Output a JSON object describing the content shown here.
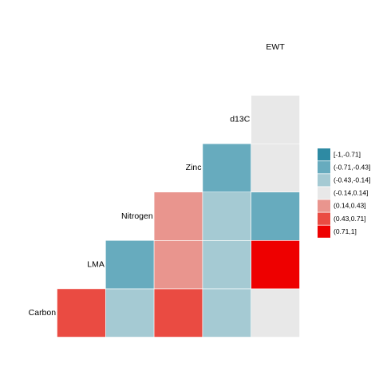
{
  "chart_data": {
    "type": "heatmap",
    "variables": [
      "Carbon",
      "LMA",
      "Nitrogen",
      "Zinc",
      "d13C",
      "EWT"
    ],
    "bins": [
      "[-1,-0.71]",
      "(-0.71,-0.43]",
      "(-0.43,-0.14]",
      "(-0.14,0.14]",
      "(0.14,0.43]",
      "(0.43,0.71]",
      "(0.71,1]"
    ],
    "bin_colors": [
      "#2e8aa3",
      "#67abbe",
      "#a5cad3",
      "#e8e8e8",
      "#e9958e",
      "#ea4b42",
      "#ee0000"
    ],
    "cells": [
      {
        "row": "Carbon",
        "col": "LMA",
        "bin": "(0.43,0.71]"
      },
      {
        "row": "Carbon",
        "col": "Nitrogen",
        "bin": "(-0.43,-0.14]"
      },
      {
        "row": "Carbon",
        "col": "Zinc",
        "bin": "(0.43,0.71]"
      },
      {
        "row": "Carbon",
        "col": "d13C",
        "bin": "(-0.43,-0.14]"
      },
      {
        "row": "Carbon",
        "col": "EWT",
        "bin": "(-0.14,0.14]"
      },
      {
        "row": "LMA",
        "col": "Nitrogen",
        "bin": "(-0.71,-0.43]"
      },
      {
        "row": "LMA",
        "col": "Zinc",
        "bin": "(0.14,0.43]"
      },
      {
        "row": "LMA",
        "col": "d13C",
        "bin": "(-0.43,-0.14]"
      },
      {
        "row": "LMA",
        "col": "EWT",
        "bin": "(0.71,1]"
      },
      {
        "row": "Nitrogen",
        "col": "Zinc",
        "bin": "(0.14,0.43]"
      },
      {
        "row": "Nitrogen",
        "col": "d13C",
        "bin": "(-0.43,-0.14]"
      },
      {
        "row": "Nitrogen",
        "col": "EWT",
        "bin": "(-0.71,-0.43]"
      },
      {
        "row": "Zinc",
        "col": "d13C",
        "bin": "(-0.71,-0.43]"
      },
      {
        "row": "Zinc",
        "col": "EWT",
        "bin": "(-0.14,0.14]"
      },
      {
        "row": "d13C",
        "col": "EWT",
        "bin": "(-0.14,0.14]"
      }
    ],
    "legend_position": "right",
    "grid": false
  }
}
